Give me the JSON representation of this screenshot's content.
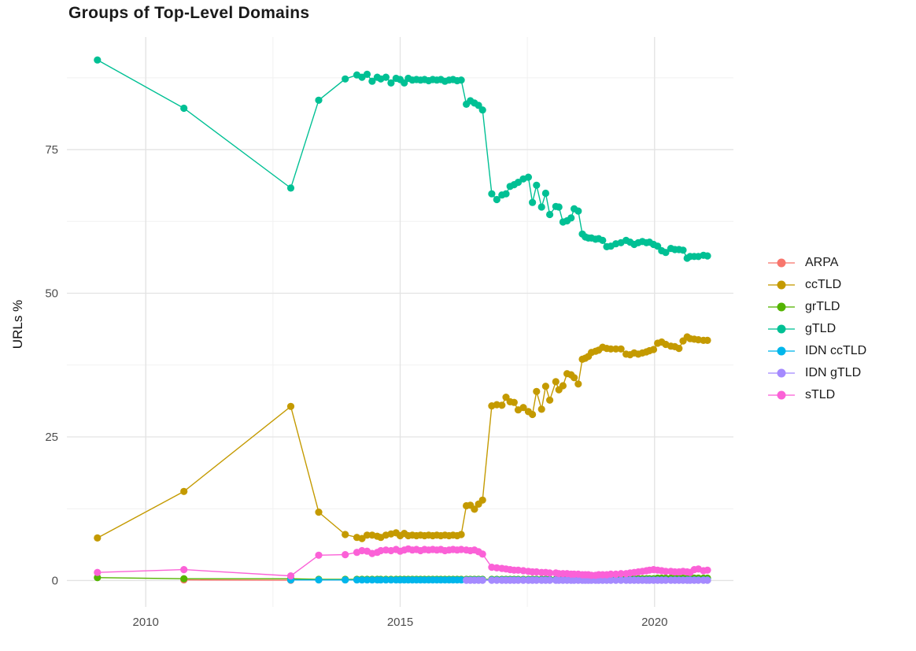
{
  "title": "Groups of Top-Level Domains",
  "chart_data": {
    "type": "line",
    "title": "Groups of Top-Level Domains",
    "xlabel": "",
    "ylabel": "URLs %",
    "x_tick_labels": [
      "2010",
      "2015",
      "2020"
    ],
    "x_ticks": [
      2010,
      2015,
      2020
    ],
    "x_minor_ticks": [
      2012.5,
      2017.5
    ],
    "y_tick_labels": [
      "0",
      "25",
      "50",
      "75"
    ],
    "y_ticks": [
      0,
      25,
      50,
      75
    ],
    "y_minor_ticks": [
      12.5,
      37.5,
      62.5,
      87.5
    ],
    "x_range": [
      2008.45,
      2021.55
    ],
    "y_range": [
      -4.6,
      94.6
    ],
    "grid": true,
    "legend_position": "right",
    "colors": {
      "background": "#ffffff",
      "grid_major": "#e3e3e3",
      "grid_minor": "#f1f1f1",
      "tick_label": "#4d4d4d",
      "title_text": "#1a1a1a"
    },
    "series": [
      {
        "name": "ARPA",
        "color": "#F8766D",
        "x": [
          2010.75,
          2012.85
        ],
        "y": [
          0.1,
          0.05
        ]
      },
      {
        "name": "ccTLD",
        "color": "#C49A00",
        "x": [
          2009.05,
          2010.75,
          2012.85,
          2013.4,
          2013.92,
          2014.15,
          2014.25,
          2014.35,
          2014.45,
          2014.55,
          2014.62,
          2014.72,
          2014.82,
          2014.92,
          2015.0,
          2015.08,
          2015.16,
          2015.24,
          2015.32,
          2015.4,
          2015.48,
          2015.56,
          2015.64,
          2015.72,
          2015.8,
          2015.88,
          2015.96,
          2016.04,
          2016.12,
          2016.2,
          2016.3,
          2016.38,
          2016.46,
          2016.54,
          2016.62,
          2016.8,
          2016.9,
          2017.0,
          2017.08,
          2017.16,
          2017.24,
          2017.32,
          2017.42,
          2017.52,
          2017.6,
          2017.68,
          2017.78,
          2017.86,
          2017.94,
          2018.06,
          2018.12,
          2018.2,
          2018.28,
          2018.36,
          2018.42,
          2018.5,
          2018.58,
          2018.64,
          2018.7,
          2018.76,
          2018.84,
          2018.9,
          2018.98,
          2019.06,
          2019.14,
          2019.24,
          2019.34,
          2019.44,
          2019.52,
          2019.6,
          2019.68,
          2019.76,
          2019.84,
          2019.9,
          2019.98,
          2020.06,
          2020.14,
          2020.22,
          2020.32,
          2020.4,
          2020.48,
          2020.56,
          2020.64,
          2020.7,
          2020.78,
          2020.86,
          2020.96,
          2021.04
        ],
        "y": [
          7.4,
          15.5,
          30.3,
          11.9,
          8.0,
          7.5,
          7.3,
          7.9,
          7.9,
          7.7,
          7.5,
          7.9,
          8.1,
          8.3,
          7.8,
          8.2,
          7.8,
          7.9,
          7.8,
          7.9,
          7.8,
          7.9,
          7.8,
          7.9,
          7.8,
          7.9,
          7.8,
          7.9,
          7.8,
          8.0,
          13.0,
          13.1,
          12.4,
          13.3,
          14.0,
          30.4,
          30.6,
          30.5,
          31.9,
          31.1,
          31.0,
          29.7,
          30.1,
          29.4,
          28.9,
          32.9,
          29.8,
          33.8,
          31.4,
          34.6,
          33.2,
          33.9,
          36.0,
          35.8,
          35.3,
          34.2,
          38.5,
          38.7,
          39.0,
          39.7,
          39.9,
          40.1,
          40.6,
          40.4,
          40.3,
          40.3,
          40.3,
          39.4,
          39.3,
          39.6,
          39.4,
          39.6,
          39.8,
          40.0,
          40.2,
          41.3,
          41.5,
          41.1,
          40.8,
          40.7,
          40.4,
          41.7,
          42.4,
          42.1,
          42.0,
          41.9,
          41.8,
          41.8
        ]
      },
      {
        "name": "grTLD",
        "color": "#53B400",
        "x": [
          2009.05,
          2010.75,
          2012.85,
          2013.4,
          2013.92,
          2014.15,
          2014.25,
          2014.35,
          2014.45,
          2014.55,
          2014.62,
          2014.72,
          2014.82,
          2014.92,
          2015.0,
          2015.08,
          2015.16,
          2015.24,
          2015.32,
          2015.4,
          2015.48,
          2015.56,
          2015.64,
          2015.72,
          2015.8,
          2015.88,
          2015.96,
          2016.04,
          2016.12,
          2016.2,
          2016.3,
          2016.38,
          2016.46,
          2016.54,
          2016.62,
          2016.8,
          2016.9,
          2017.0,
          2017.08,
          2017.16,
          2017.24,
          2017.32,
          2017.42,
          2017.52,
          2017.6,
          2017.68,
          2017.78,
          2017.86,
          2017.94,
          2018.06,
          2018.12,
          2018.2,
          2018.28,
          2018.36,
          2018.42,
          2018.5,
          2018.58,
          2018.64,
          2018.7,
          2018.76,
          2018.84,
          2018.9,
          2018.98,
          2019.06,
          2019.14,
          2019.24,
          2019.34,
          2019.44,
          2019.52,
          2019.6,
          2019.68,
          2019.76,
          2019.84,
          2019.9,
          2019.98,
          2020.06,
          2020.14,
          2020.22,
          2020.32,
          2020.4,
          2020.48,
          2020.56,
          2020.64,
          2020.7,
          2020.78,
          2020.86,
          2020.96,
          2021.04
        ],
        "y": [
          0.5,
          0.3,
          0.3,
          0.2,
          0.2,
          0.2,
          0.2,
          0.2,
          0.2,
          0.2,
          0.2,
          0.2,
          0.2,
          0.2,
          0.2,
          0.2,
          0.2,
          0.2,
          0.2,
          0.2,
          0.2,
          0.2,
          0.2,
          0.2,
          0.2,
          0.2,
          0.2,
          0.2,
          0.2,
          0.2,
          0.2,
          0.2,
          0.2,
          0.2,
          0.2,
          0.2,
          0.2,
          0.2,
          0.2,
          0.2,
          0.2,
          0.2,
          0.2,
          0.2,
          0.2,
          0.2,
          0.2,
          0.2,
          0.2,
          0.2,
          0.3,
          0.3,
          0.3,
          0.3,
          0.3,
          0.3,
          0.3,
          0.3,
          0.3,
          0.3,
          0.3,
          0.3,
          0.3,
          0.3,
          0.3,
          0.3,
          0.3,
          0.3,
          0.3,
          0.3,
          0.3,
          0.3,
          0.3,
          0.3,
          0.3,
          0.4,
          0.4,
          0.4,
          0.4,
          0.4,
          0.4,
          0.4,
          0.4,
          0.4,
          0.4,
          0.4,
          0.4,
          0.4
        ]
      },
      {
        "name": "gTLD",
        "color": "#00C094",
        "x": [
          2009.05,
          2010.75,
          2012.85,
          2013.4,
          2013.92,
          2014.15,
          2014.25,
          2014.35,
          2014.45,
          2014.55,
          2014.62,
          2014.72,
          2014.82,
          2014.92,
          2015.0,
          2015.08,
          2015.16,
          2015.24,
          2015.32,
          2015.4,
          2015.48,
          2015.56,
          2015.64,
          2015.72,
          2015.8,
          2015.88,
          2015.96,
          2016.04,
          2016.12,
          2016.2,
          2016.3,
          2016.38,
          2016.46,
          2016.54,
          2016.62,
          2016.8,
          2016.9,
          2017.0,
          2017.08,
          2017.16,
          2017.24,
          2017.32,
          2017.42,
          2017.52,
          2017.6,
          2017.68,
          2017.78,
          2017.86,
          2017.94,
          2018.06,
          2018.12,
          2018.2,
          2018.28,
          2018.36,
          2018.42,
          2018.5,
          2018.58,
          2018.64,
          2018.7,
          2018.76,
          2018.84,
          2018.9,
          2018.98,
          2019.06,
          2019.14,
          2019.24,
          2019.34,
          2019.44,
          2019.52,
          2019.6,
          2019.68,
          2019.76,
          2019.84,
          2019.9,
          2019.98,
          2020.06,
          2020.14,
          2020.22,
          2020.32,
          2020.4,
          2020.48,
          2020.56,
          2020.64,
          2020.7,
          2020.78,
          2020.86,
          2020.96,
          2021.04
        ],
        "y": [
          90.6,
          82.2,
          68.3,
          83.6,
          87.3,
          88.0,
          87.6,
          88.1,
          86.9,
          87.6,
          87.3,
          87.6,
          86.6,
          87.4,
          87.2,
          86.6,
          87.4,
          87.1,
          87.2,
          87.1,
          87.2,
          87.0,
          87.2,
          87.1,
          87.2,
          86.9,
          87.1,
          87.2,
          87.0,
          87.1,
          82.9,
          83.5,
          83.1,
          82.7,
          81.9,
          67.3,
          66.3,
          67.1,
          67.3,
          68.6,
          68.9,
          69.3,
          69.9,
          70.2,
          65.8,
          68.8,
          65.0,
          67.4,
          63.7,
          65.1,
          65.0,
          62.4,
          62.6,
          63.1,
          64.7,
          64.3,
          60.3,
          59.8,
          59.6,
          59.6,
          59.4,
          59.5,
          59.2,
          58.1,
          58.2,
          58.6,
          58.8,
          59.2,
          58.9,
          58.5,
          58.8,
          59.0,
          58.8,
          58.9,
          58.5,
          58.2,
          57.4,
          57.1,
          57.8,
          57.6,
          57.6,
          57.5,
          56.1,
          56.4,
          56.4,
          56.4,
          56.6,
          56.5
        ]
      },
      {
        "name": "IDN ccTLD",
        "color": "#00B6EB",
        "x": [
          2012.85,
          2013.4,
          2013.92,
          2014.15,
          2014.25,
          2014.35,
          2014.45,
          2014.55,
          2014.62,
          2014.72,
          2014.82,
          2014.92,
          2015.0,
          2015.08,
          2015.16,
          2015.24,
          2015.32,
          2015.4,
          2015.48,
          2015.56,
          2015.64,
          2015.72,
          2015.8,
          2015.88,
          2015.96,
          2016.04,
          2016.12,
          2016.2,
          2016.3,
          2016.38,
          2016.46,
          2016.54,
          2016.62,
          2016.8,
          2016.9,
          2017.0,
          2017.08,
          2017.16,
          2017.24,
          2017.32,
          2017.42,
          2017.52,
          2017.6,
          2017.68,
          2017.78,
          2017.86,
          2017.94,
          2018.06,
          2018.12,
          2018.2,
          2018.28,
          2018.36,
          2018.42,
          2018.5,
          2018.58,
          2018.64,
          2018.7,
          2018.76,
          2018.84,
          2018.9,
          2018.98,
          2019.06,
          2019.14,
          2019.24,
          2019.34,
          2019.44,
          2019.52,
          2019.6,
          2019.68,
          2019.76,
          2019.84,
          2019.9,
          2019.98,
          2020.06,
          2020.14,
          2020.22,
          2020.32,
          2020.4,
          2020.48,
          2020.56,
          2020.64,
          2020.7,
          2020.78,
          2020.86,
          2020.96,
          2021.04
        ],
        "y": [
          0.1,
          0.1,
          0.1,
          0.1,
          0.1,
          0.1,
          0.1,
          0.1,
          0.1,
          0.1,
          0.1,
          0.1,
          0.1,
          0.1,
          0.1,
          0.1,
          0.1,
          0.1,
          0.1,
          0.1,
          0.1,
          0.1,
          0.1,
          0.1,
          0.1,
          0.1,
          0.1,
          0.1,
          0.1,
          0.1,
          0.1,
          0.1,
          0.1,
          0.1,
          0.1,
          0.1,
          0.1,
          0.1,
          0.1,
          0.1,
          0.1,
          0.1,
          0.1,
          0.1,
          0.1,
          0.1,
          0.1,
          0.1,
          0.1,
          0.1,
          0.1,
          0.1,
          0.1,
          0.1,
          0.1,
          0.1,
          0.1,
          0.1,
          0.1,
          0.1,
          0.1,
          0.1,
          0.1,
          0.1,
          0.1,
          0.1,
          0.1,
          0.1,
          0.1,
          0.1,
          0.1,
          0.1,
          0.1,
          0.1,
          0.1,
          0.1,
          0.1,
          0.1,
          0.1,
          0.1,
          0.1,
          0.1,
          0.1,
          0.1,
          0.1,
          0.1
        ]
      },
      {
        "name": "IDN gTLD",
        "color": "#A58AFF",
        "x": [
          2016.3,
          2016.38,
          2016.46,
          2016.54,
          2016.62,
          2016.8,
          2016.9,
          2017.0,
          2017.08,
          2017.16,
          2017.24,
          2017.32,
          2017.42,
          2017.52,
          2017.6,
          2017.68,
          2017.78,
          2017.86,
          2017.94,
          2018.06,
          2018.12,
          2018.2,
          2018.28,
          2018.36,
          2018.42,
          2018.5,
          2018.58,
          2018.64,
          2018.7,
          2018.76,
          2018.84,
          2018.9,
          2018.98,
          2019.06,
          2019.14,
          2019.24,
          2019.34,
          2019.44,
          2019.52,
          2019.6,
          2019.68,
          2019.76,
          2019.84,
          2019.9,
          2019.98,
          2020.06,
          2020.14,
          2020.22,
          2020.32,
          2020.4,
          2020.48,
          2020.56,
          2020.64,
          2020.7,
          2020.78,
          2020.86,
          2020.96,
          2021.04
        ],
        "y": [
          0.05,
          0.05,
          0.05,
          0.05,
          0.05,
          0.05,
          0.05,
          0.05,
          0.05,
          0.05,
          0.05,
          0.05,
          0.05,
          0.05,
          0.05,
          0.05,
          0.05,
          0.05,
          0.05,
          0.05,
          0.05,
          0.05,
          0.05,
          0.05,
          0.05,
          0.05,
          0.05,
          0.05,
          0.05,
          0.05,
          0.05,
          0.05,
          0.05,
          0.05,
          0.05,
          0.05,
          0.05,
          0.05,
          0.05,
          0.05,
          0.05,
          0.05,
          0.05,
          0.05,
          0.05,
          0.05,
          0.05,
          0.05,
          0.05,
          0.05,
          0.05,
          0.05,
          0.05,
          0.05,
          0.05,
          0.05,
          0.05,
          0.05
        ]
      },
      {
        "name": "sTLD",
        "color": "#FB61D7",
        "x": [
          2009.05,
          2010.75,
          2012.85,
          2013.4,
          2013.92,
          2014.15,
          2014.25,
          2014.35,
          2014.45,
          2014.55,
          2014.62,
          2014.72,
          2014.82,
          2014.92,
          2015.0,
          2015.08,
          2015.16,
          2015.24,
          2015.32,
          2015.4,
          2015.48,
          2015.56,
          2015.64,
          2015.72,
          2015.8,
          2015.88,
          2015.96,
          2016.04,
          2016.12,
          2016.2,
          2016.3,
          2016.38,
          2016.46,
          2016.54,
          2016.62,
          2016.8,
          2016.9,
          2017.0,
          2017.08,
          2017.16,
          2017.24,
          2017.32,
          2017.42,
          2017.52,
          2017.6,
          2017.68,
          2017.78,
          2017.86,
          2017.94,
          2018.06,
          2018.12,
          2018.2,
          2018.28,
          2018.36,
          2018.42,
          2018.5,
          2018.58,
          2018.64,
          2018.7,
          2018.76,
          2018.84,
          2018.9,
          2018.98,
          2019.06,
          2019.14,
          2019.24,
          2019.34,
          2019.44,
          2019.52,
          2019.6,
          2019.68,
          2019.76,
          2019.84,
          2019.9,
          2019.98,
          2020.06,
          2020.14,
          2020.22,
          2020.32,
          2020.4,
          2020.48,
          2020.56,
          2020.64,
          2020.7,
          2020.78,
          2020.86,
          2020.96,
          2021.04
        ],
        "y": [
          1.4,
          1.9,
          0.8,
          4.4,
          4.5,
          4.9,
          5.2,
          5.1,
          4.7,
          4.9,
          5.2,
          5.3,
          5.2,
          5.4,
          5.1,
          5.3,
          5.5,
          5.3,
          5.4,
          5.2,
          5.4,
          5.3,
          5.4,
          5.3,
          5.4,
          5.2,
          5.3,
          5.4,
          5.3,
          5.4,
          5.3,
          5.2,
          5.3,
          5.0,
          4.6,
          2.3,
          2.2,
          2.1,
          2.0,
          1.9,
          1.8,
          1.8,
          1.7,
          1.6,
          1.5,
          1.5,
          1.4,
          1.4,
          1.3,
          1.3,
          1.2,
          1.2,
          1.2,
          1.1,
          1.1,
          1.1,
          1.0,
          1.0,
          1.0,
          0.9,
          0.9,
          1.0,
          1.0,
          1.0,
          1.1,
          1.1,
          1.2,
          1.2,
          1.3,
          1.4,
          1.5,
          1.6,
          1.7,
          1.8,
          1.9,
          1.8,
          1.7,
          1.6,
          1.6,
          1.5,
          1.5,
          1.6,
          1.5,
          1.4,
          1.9,
          2.0,
          1.7,
          1.8
        ]
      }
    ]
  }
}
